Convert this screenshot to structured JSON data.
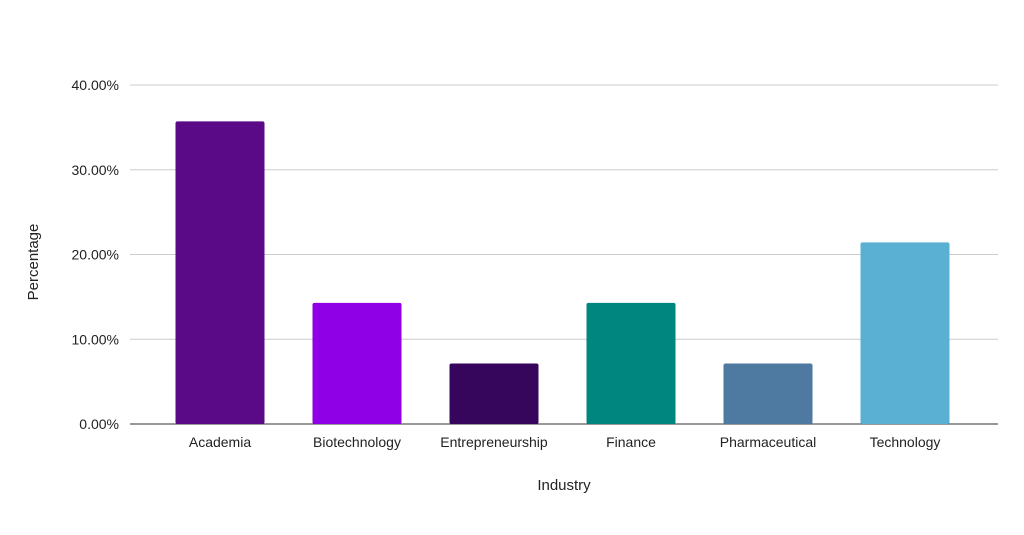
{
  "chart_data": {
    "type": "bar",
    "title": "",
    "xlabel": "Industry",
    "ylabel": "Percentage",
    "categories": [
      "Academia",
      "Biotechnology",
      "Entrepreneurship",
      "Finance",
      "Pharmaceutical",
      "Technology"
    ],
    "values": [
      35.71,
      14.29,
      7.14,
      14.29,
      7.14,
      21.43
    ],
    "colors": [
      "#5b0a87",
      "#8f00e6",
      "#36065c",
      "#00857f",
      "#4e79a0",
      "#5ab0d3"
    ],
    "ylim": [
      0,
      40
    ],
    "yticks": [
      "0.00%",
      "10.00%",
      "20.00%",
      "30.00%",
      "40.00%"
    ],
    "grid": true,
    "legend": "none"
  }
}
